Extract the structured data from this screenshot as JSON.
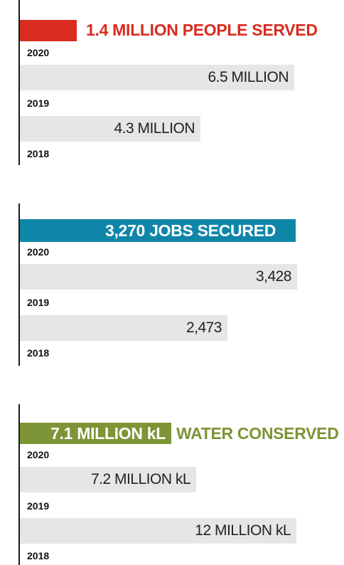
{
  "chart_data": [
    {
      "type": "bar",
      "headline": {
        "label": "1.4 MILLION PEOPLE SERVED",
        "value": 1.4,
        "unit": "MILLION"
      },
      "categories": [
        "2020",
        "2019",
        "2018"
      ],
      "series": [
        {
          "values": [
            1.4,
            6.5,
            4.3
          ]
        }
      ],
      "value_labels": [
        "6.5 MILLION",
        "4.3 MILLION"
      ],
      "colors": {
        "accent": "#d92b1f",
        "bar": "#e6e6e6"
      }
    },
    {
      "type": "bar",
      "headline": {
        "label": "3,270 JOBS SECURED",
        "value": 3270
      },
      "categories": [
        "2020",
        "2019",
        "2018"
      ],
      "series": [
        {
          "values": [
            3270,
            3428,
            2473
          ]
        }
      ],
      "value_labels": [
        "3,428",
        "2,473"
      ],
      "colors": {
        "accent": "#0f86a8",
        "bar": "#e6e6e6"
      }
    },
    {
      "type": "bar",
      "headline": {
        "label": "7.1 MILLION kL",
        "suffix": "WATER CONSERVED",
        "value": 7.1,
        "unit": "MILLION kL"
      },
      "categories": [
        "2020",
        "2019",
        "2018"
      ],
      "series": [
        {
          "values": [
            7.1,
            7.2,
            12
          ]
        }
      ],
      "value_labels": [
        "7.2 MILLION kL",
        "12 MILLION kL"
      ],
      "colors": {
        "accent": "#7d9437",
        "bar": "#e6e6e6"
      }
    }
  ]
}
